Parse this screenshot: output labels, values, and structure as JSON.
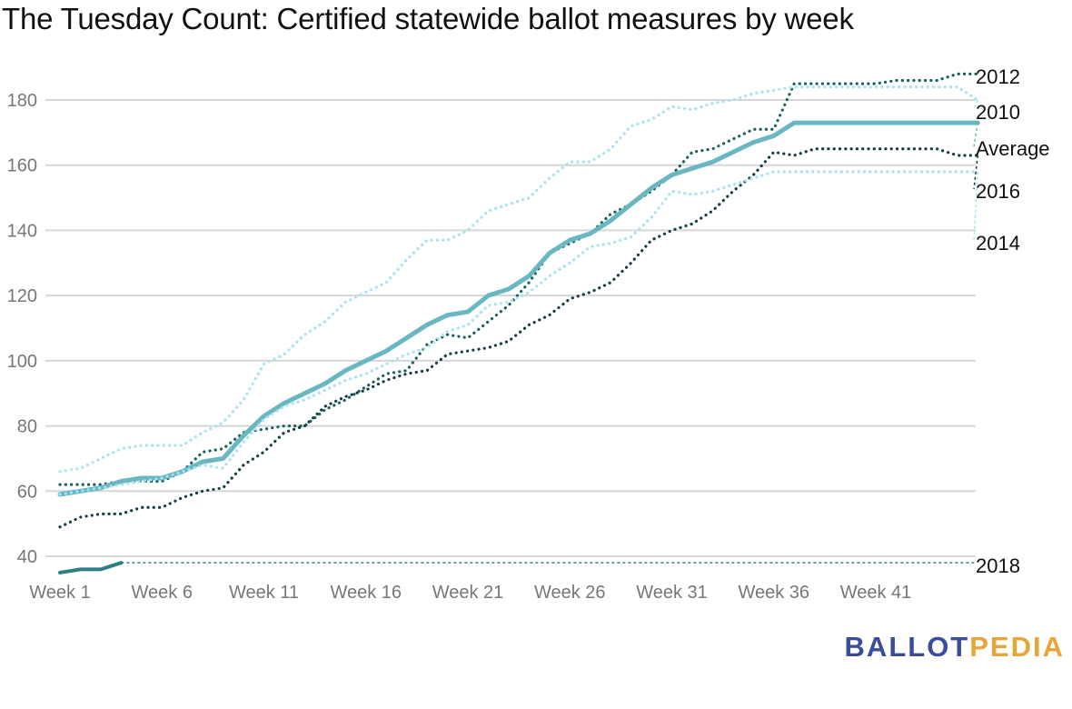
{
  "title": "The Tuesday Count: Certified statewide ballot measures by week",
  "logo": {
    "part1": "BALLOT",
    "part2": "PEDIA"
  },
  "chart_data": {
    "type": "line",
    "title": "The Tuesday Count: Certified statewide ballot measures by week",
    "xlabel": "",
    "ylabel": "",
    "ylim": [
      35,
      190
    ],
    "x_ticks": [
      "Week 1",
      "Week 6",
      "Week 11",
      "Week 16",
      "Week 21",
      "Week 26",
      "Week 31",
      "Week 36",
      "Week 41"
    ],
    "y_ticks": [
      40,
      60,
      80,
      100,
      120,
      140,
      160,
      180
    ],
    "grid": true,
    "series": [
      {
        "name": "2012",
        "color": "#17615f",
        "style": "dotted",
        "x": [
          1,
          2,
          3,
          4,
          5,
          6,
          7,
          8,
          9,
          10,
          11,
          12,
          13,
          14,
          15,
          16,
          17,
          18,
          19,
          20,
          21,
          22,
          23,
          24,
          25,
          26,
          27,
          28,
          29,
          30,
          31,
          32,
          33,
          34,
          35,
          36,
          37,
          38,
          39,
          40,
          41,
          42,
          43,
          44,
          45,
          46
        ],
        "values": [
          62,
          62,
          62,
          63,
          63,
          63,
          66,
          72,
          73,
          78,
          79,
          80,
          80,
          85,
          88,
          92,
          96,
          97,
          105,
          108,
          107,
          112,
          117,
          124,
          133,
          136,
          139,
          145,
          148,
          152,
          157,
          164,
          165,
          168,
          171,
          171,
          185,
          185,
          185,
          185,
          185,
          186,
          186,
          186,
          188,
          188
        ]
      },
      {
        "name": "2010",
        "color": "#a5e4f1",
        "style": "dotted",
        "x": [
          1,
          2,
          3,
          4,
          5,
          6,
          7,
          8,
          9,
          10,
          11,
          12,
          13,
          14,
          15,
          16,
          17,
          18,
          19,
          20,
          21,
          22,
          23,
          24,
          25,
          26,
          27,
          28,
          29,
          30,
          31,
          32,
          33,
          34,
          35,
          36,
          37,
          38,
          39,
          40,
          41,
          42,
          43,
          44,
          45,
          46
        ],
        "values": [
          66,
          67,
          70,
          73,
          74,
          74,
          74,
          78,
          81,
          88,
          99,
          102,
          108,
          112,
          118,
          121,
          124,
          131,
          137,
          137,
          140,
          146,
          148,
          150,
          156,
          161,
          161,
          165,
          172,
          174,
          178,
          177,
          179,
          180,
          182,
          183,
          184,
          184,
          184,
          184,
          184,
          184,
          184,
          184,
          184,
          180
        ]
      },
      {
        "name": "Average",
        "color": "#68b7c2",
        "style": "solid",
        "x": [
          1,
          2,
          3,
          4,
          5,
          6,
          7,
          8,
          9,
          10,
          11,
          12,
          13,
          14,
          15,
          16,
          17,
          18,
          19,
          20,
          21,
          22,
          23,
          24,
          25,
          26,
          27,
          28,
          29,
          30,
          31,
          32,
          33,
          34,
          35,
          36,
          37,
          38,
          39,
          40,
          41,
          42,
          43,
          44,
          45,
          46
        ],
        "values": [
          59,
          60,
          61,
          63,
          64,
          64,
          66,
          69,
          70,
          77,
          83,
          87,
          90,
          93,
          97,
          100,
          103,
          107,
          111,
          114,
          115,
          120,
          122,
          126,
          133,
          137,
          139,
          143,
          148,
          153,
          157,
          159,
          161,
          164,
          167,
          169,
          173,
          173,
          173,
          173,
          173,
          173,
          173,
          173,
          173,
          173
        ]
      },
      {
        "name": "2016",
        "color": "#123f45",
        "style": "dotted",
        "x": [
          1,
          2,
          3,
          4,
          5,
          6,
          7,
          8,
          9,
          10,
          11,
          12,
          13,
          14,
          15,
          16,
          17,
          18,
          19,
          20,
          21,
          22,
          23,
          24,
          25,
          26,
          27,
          28,
          29,
          30,
          31,
          32,
          33,
          34,
          35,
          36,
          37,
          38,
          39,
          40,
          41,
          42,
          43,
          44,
          45,
          46
        ],
        "values": [
          49,
          52,
          53,
          53,
          55,
          55,
          58,
          60,
          61,
          68,
          72,
          78,
          80,
          86,
          89,
          91,
          94,
          96,
          97,
          102,
          103,
          104,
          106,
          111,
          114,
          119,
          121,
          124,
          130,
          137,
          140,
          142,
          146,
          152,
          157,
          164,
          163,
          165,
          165,
          165,
          165,
          165,
          165,
          165,
          163,
          163
        ]
      },
      {
        "name": "2014",
        "color": "#a5e4f1",
        "style": "dotted",
        "x": [
          1,
          2,
          3,
          4,
          5,
          6,
          7,
          8,
          9,
          10,
          11,
          12,
          13,
          14,
          15,
          16,
          17,
          18,
          19,
          20,
          21,
          22,
          23,
          24,
          25,
          26,
          27,
          28,
          29,
          30,
          31,
          32,
          33,
          34,
          35,
          36,
          37,
          38,
          39,
          40,
          41,
          42,
          43,
          44,
          45,
          46
        ],
        "values": [
          59,
          60,
          61,
          62,
          63,
          64,
          66,
          68,
          67,
          75,
          82,
          86,
          88,
          91,
          94,
          96,
          99,
          102,
          104,
          109,
          111,
          117,
          118,
          121,
          126,
          130,
          135,
          136,
          138,
          144,
          152,
          151,
          152,
          154,
          156,
          158,
          158,
          158,
          158,
          158,
          158,
          158,
          158,
          158,
          158,
          158
        ]
      },
      {
        "name": "2018",
        "color": "#2e7e86",
        "style": "solid",
        "x": [
          1,
          2,
          3,
          4
        ],
        "values": [
          35,
          36,
          36,
          38
        ],
        "projection": 38
      }
    ]
  }
}
